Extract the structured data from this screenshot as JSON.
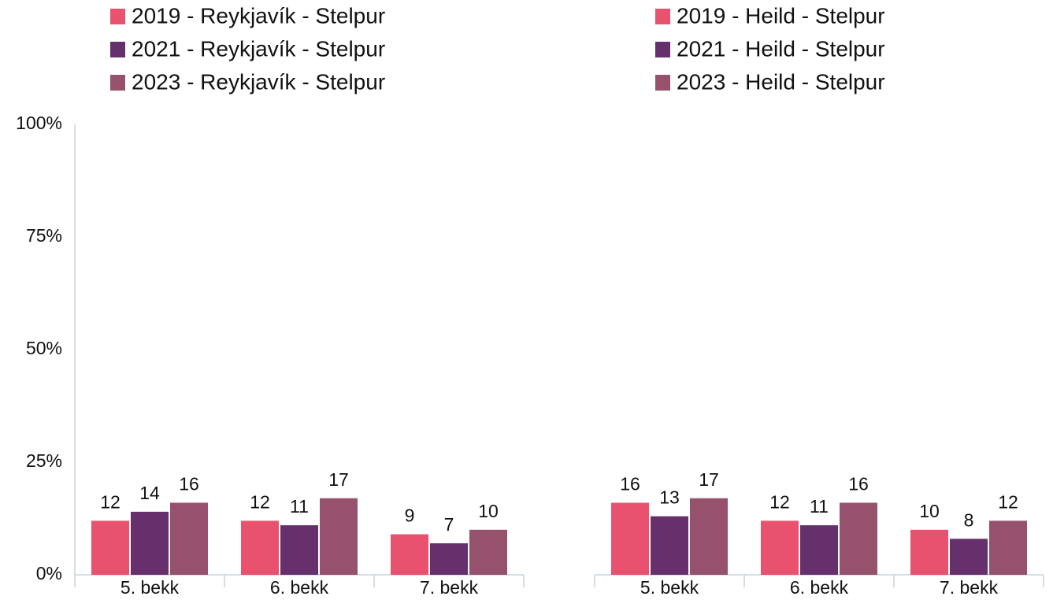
{
  "chart_data": [
    {
      "type": "bar",
      "categories": [
        "5. bekk",
        "6. bekk",
        "7. bekk"
      ],
      "series": [
        {
          "name": "2019 - Reykjavík - Stelpur",
          "color": "#e8526e",
          "values": [
            12,
            12,
            9
          ]
        },
        {
          "name": "2021 - Reykjavík - Stelpur",
          "color": "#65306b",
          "values": [
            14,
            11,
            7
          ]
        },
        {
          "name": "2023 - Reykjavík - Stelpur",
          "color": "#96526d",
          "values": [
            16,
            17,
            10
          ]
        }
      ],
      "ylim": [
        0,
        100
      ],
      "yticks": [
        {
          "value": 0,
          "label": "0%"
        },
        {
          "value": 25,
          "label": "25%"
        },
        {
          "value": 50,
          "label": "50%"
        },
        {
          "value": 75,
          "label": "75%"
        },
        {
          "value": 100,
          "label": "100%"
        }
      ]
    },
    {
      "type": "bar",
      "categories": [
        "5. bekk",
        "6. bekk",
        "7. bekk"
      ],
      "series": [
        {
          "name": "2019 - Heild - Stelpur",
          "color": "#e8526e",
          "values": [
            16,
            12,
            10
          ]
        },
        {
          "name": "2021 - Heild - Stelpur",
          "color": "#65306b",
          "values": [
            13,
            11,
            8
          ]
        },
        {
          "name": "2023 - Heild - Stelpur",
          "color": "#96526d",
          "values": [
            17,
            16,
            12
          ]
        }
      ],
      "ylim": [
        0,
        100
      ]
    }
  ]
}
